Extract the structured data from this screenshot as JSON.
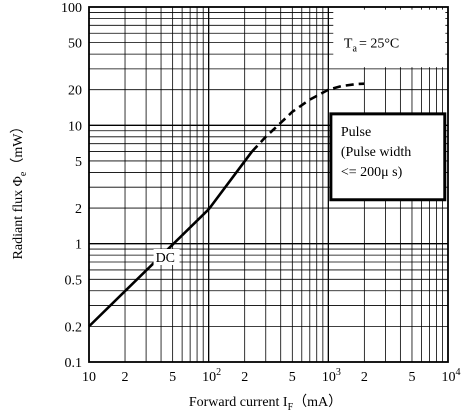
{
  "chart_data": {
    "type": "line",
    "x_scale": "log",
    "y_scale": "log",
    "xlim": [
      10,
      10000
    ],
    "ylim": [
      0.1,
      100
    ],
    "grid": true,
    "x_tick_labels": [
      {
        "value": 10,
        "label": "10"
      },
      {
        "value": 20,
        "label": "2"
      },
      {
        "value": 50,
        "label": "5"
      },
      {
        "value": 100,
        "label": "10",
        "exp": "2"
      },
      {
        "value": 200,
        "label": "2"
      },
      {
        "value": 500,
        "label": "5"
      },
      {
        "value": 1000,
        "label": "10",
        "exp": "3"
      },
      {
        "value": 2000,
        "label": "2"
      },
      {
        "value": 5000,
        "label": "5"
      },
      {
        "value": 10000,
        "label": "10",
        "exp": "4"
      }
    ],
    "y_tick_labels": [
      {
        "value": 0.1,
        "label": "0.1"
      },
      {
        "value": 0.2,
        "label": "0.2"
      },
      {
        "value": 0.5,
        "label": "0.5"
      },
      {
        "value": 1,
        "label": "1"
      },
      {
        "value": 2,
        "label": "2"
      },
      {
        "value": 5,
        "label": "5"
      },
      {
        "value": 10,
        "label": "10"
      },
      {
        "value": 20,
        "label": "20"
      },
      {
        "value": 50,
        "label": "50"
      },
      {
        "value": 100,
        "label": "100"
      }
    ],
    "xlabel": {
      "main": "Forward current I",
      "sub": "F",
      "unit": "（mA）"
    },
    "ylabel": {
      "main": "Radiant flux Φ",
      "sub": "e",
      "unit": "（mW）"
    },
    "series": [
      {
        "name": "DC",
        "style": "solid",
        "points": [
          [
            10,
            0.2
          ],
          [
            100,
            1.95
          ],
          [
            230,
            6.0
          ]
        ]
      },
      {
        "name": "Pulse",
        "style": "dashed",
        "points": [
          [
            230,
            6.0
          ],
          [
            300,
            8.0
          ],
          [
            400,
            10.5
          ],
          [
            500,
            13.0
          ],
          [
            700,
            16.5
          ],
          [
            1000,
            20.0
          ],
          [
            1300,
            21.5
          ],
          [
            1700,
            22.3
          ],
          [
            2000,
            22.5
          ]
        ]
      }
    ],
    "annotations": {
      "dc_label": "DC",
      "ta": {
        "main": "T",
        "sub": "a",
        "rest": "= 25°C"
      },
      "pulse_box": {
        "line1": "Pulse",
        "line2": "(Pulse width",
        "line3": "<= 200μ s)"
      }
    }
  }
}
